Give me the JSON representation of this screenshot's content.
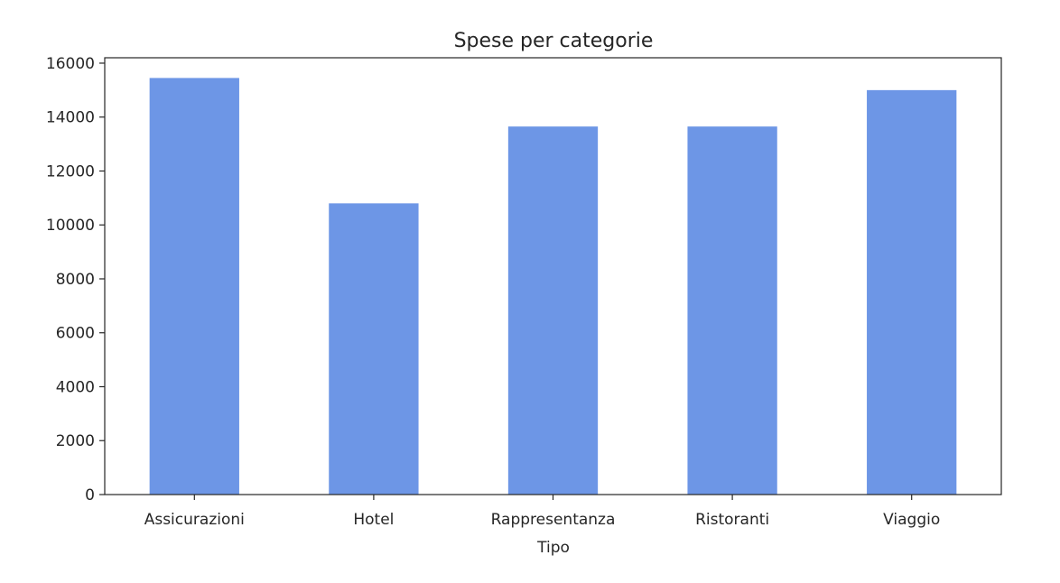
{
  "chart_data": {
    "type": "bar",
    "title": "Spese per categorie",
    "xlabel": "Tipo",
    "ylabel": "",
    "categories": [
      "Assicurazioni",
      "Hotel",
      "Rappresentanza",
      "Ristoranti",
      "Viaggio"
    ],
    "values": [
      15450,
      10800,
      13650,
      13650,
      15000
    ],
    "ylim": [
      0,
      16200
    ],
    "yticks": [
      0,
      2000,
      4000,
      6000,
      8000,
      10000,
      12000,
      14000,
      16000
    ],
    "ytick_labels": [
      "0",
      "2000",
      "4000",
      "6000",
      "8000",
      "10000",
      "12000",
      "14000",
      "16000"
    ],
    "bar_color": "#6d96e6",
    "grid": false,
    "legend": "none"
  }
}
